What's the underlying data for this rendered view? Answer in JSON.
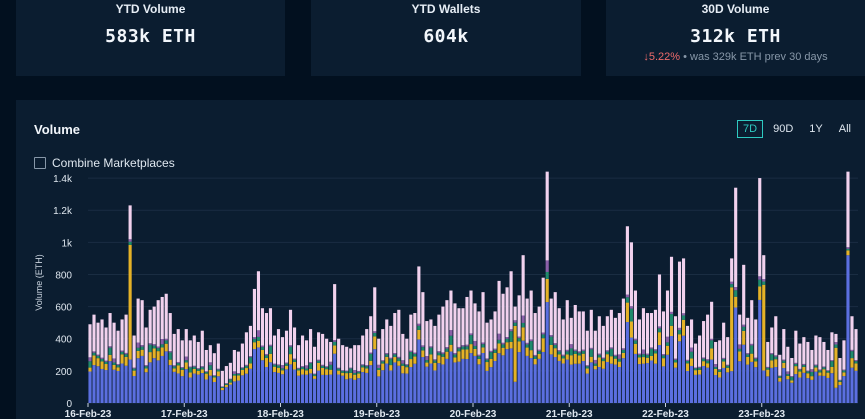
{
  "cards": [
    {
      "label": "YTD Volume",
      "value": "583k ETH"
    },
    {
      "label": "YTD Wallets",
      "value": "604k"
    },
    {
      "label": "30D Volume",
      "value": "312k ETH",
      "change_arrow": "↓",
      "change_pct": "5.22%",
      "change_note": "• was 329k ETH prev 30 days"
    }
  ],
  "panel": {
    "title": "Volume",
    "ranges": [
      {
        "label": "7D",
        "active": true
      },
      {
        "label": "90D",
        "active": false
      },
      {
        "label": "1Y",
        "active": false
      },
      {
        "label": "All",
        "active": false
      }
    ],
    "combine_label": "Combine Marketplaces"
  },
  "colors": {
    "blue": "#5b6fe0",
    "yellow": "#e5b227",
    "pink": "#f2d2ee",
    "green": "#1f8a6c",
    "purple": "#8b5fa8",
    "accent": "#2ec9c0",
    "down": "#ef6b6b"
  },
  "chart_data": {
    "type": "bar",
    "stacked": true,
    "ylabel": "Volume (ETH)",
    "ylim": [
      0,
      1500
    ],
    "yticks": [
      0,
      200,
      400,
      600,
      800,
      1000,
      1200,
      1400
    ],
    "ytick_labels": [
      "0",
      "200",
      "400",
      "600",
      "800",
      "1k",
      "1.2k",
      "1.4k"
    ],
    "x_tick_labels": [
      "16-Feb-23",
      "17-Feb-23",
      "18-Feb-23",
      "19-Feb-23",
      "20-Feb-23",
      "21-Feb-23",
      "22-Feb-23",
      "23-Feb-23"
    ],
    "bars_per_day": 24,
    "totals": [
      490,
      550,
      500,
      520,
      470,
      560,
      500,
      450,
      520,
      550,
      1230,
      420,
      650,
      640,
      470,
      580,
      600,
      640,
      660,
      680,
      560,
      430,
      460,
      390,
      460,
      390,
      420,
      380,
      450,
      330,
      360,
      310,
      370,
      200,
      230,
      250,
      330,
      320,
      370,
      440,
      480,
      710,
      820,
      590,
      560,
      590,
      420,
      460,
      410,
      450,
      580,
      470,
      360,
      420,
      390,
      460,
      350,
      440,
      430,
      400,
      380,
      740,
      400,
      360,
      350,
      340,
      360,
      360,
      420,
      460,
      540,
      720,
      400,
      460,
      520,
      480,
      560,
      580,
      430,
      400,
      550,
      560,
      850,
      690,
      510,
      520,
      480,
      550,
      600,
      640,
      700,
      620,
      590,
      590,
      660,
      700,
      620,
      570,
      690,
      500,
      520,
      570,
      760,
      680,
      720,
      820,
      600,
      670,
      920,
      650,
      700,
      560,
      600,
      780,
      1440,
      650,
      690,
      590,
      520,
      640,
      530,
      610,
      570,
      570,
      450,
      580,
      450,
      540,
      480,
      540,
      580,
      530,
      560,
      650,
      1100,
      1000,
      700,
      520,
      590,
      560,
      560,
      580,
      800,
      570,
      700,
      910,
      540,
      880,
      900,
      480,
      520,
      370,
      420,
      510,
      550,
      630,
      380,
      390,
      500,
      410,
      900,
      1340,
      550,
      860,
      530,
      640,
      520,
      1400,
      920,
      380,
      470,
      540,
      300,
      460,
      350,
      280,
      450,
      370,
      410,
      380,
      330,
      420,
      410,
      380,
      330,
      440,
      430,
      280,
      390,
      1440,
      540,
      460
    ],
    "blue_share": 0.4,
    "tall_yellow_bars": [
      10,
      106,
      160,
      168,
      186
    ]
  }
}
